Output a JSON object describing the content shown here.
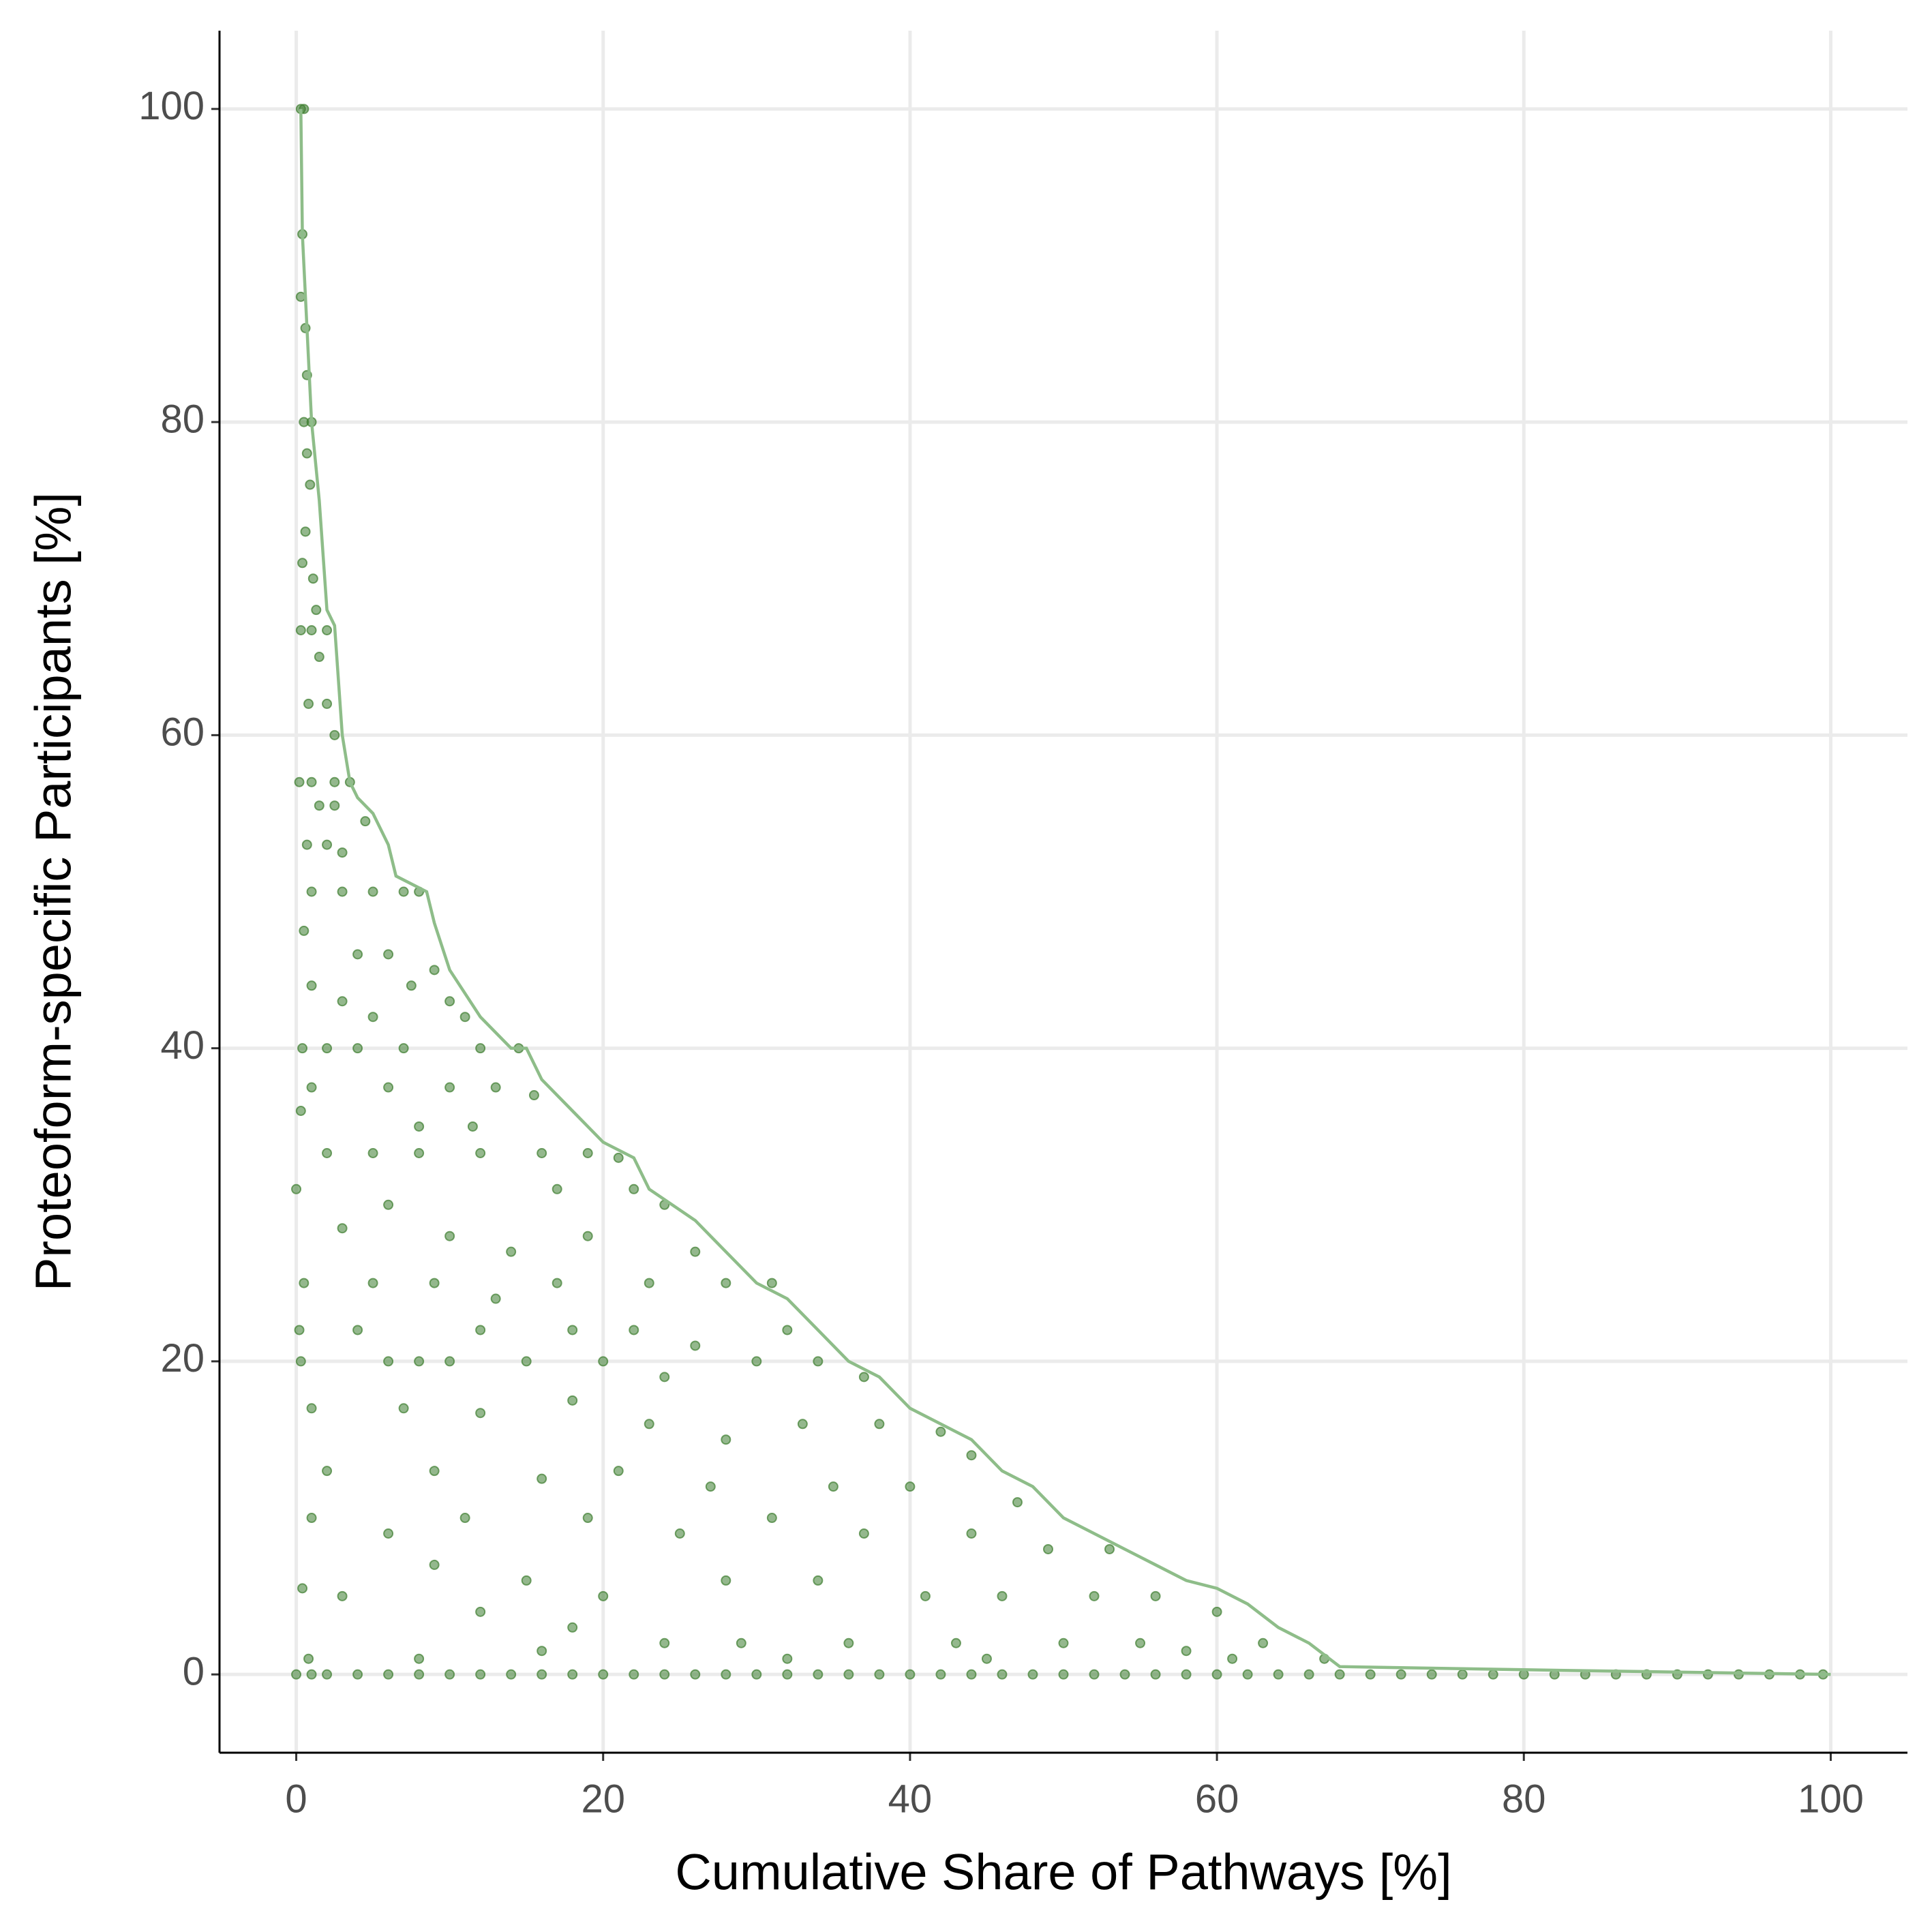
{
  "chart_data": {
    "type": "scatter",
    "x_label": "Cumulative Share of Pathways [%]",
    "y_label": "Proteoform-specific Participants [%]",
    "xlim": [
      -5,
      105
    ],
    "ylim": [
      -5,
      105
    ],
    "xticks": [
      0,
      20,
      40,
      60,
      80,
      100
    ],
    "yticks": [
      0,
      20,
      40,
      60,
      80,
      100
    ],
    "grid": true,
    "series": [
      {
        "type": "scatter",
        "color": "#3d7d2f",
        "x": [
          0.3,
          0.5,
          0.4,
          0.3,
          0.6,
          0.7,
          0.5,
          1,
          0.7,
          0.9,
          0.6,
          1.1,
          0.4,
          1.3,
          0.3,
          1,
          2,
          1.5,
          0.8,
          2,
          2.5,
          0.2,
          1,
          2.5,
          3.5,
          1.5,
          2.5,
          4.5,
          0.7,
          2,
          3,
          1,
          3,
          5,
          7,
          8,
          0.5,
          4,
          6,
          7.5,
          9,
          1,
          3,
          10,
          5,
          11,
          0.4,
          2,
          4,
          7,
          12,
          14.5,
          1,
          6,
          10,
          13,
          15.5,
          0.3,
          8,
          11.5,
          2,
          5,
          8,
          12,
          16,
          19,
          21,
          0,
          6,
          17,
          22,
          24,
          3,
          10,
          14,
          19,
          26,
          0.5,
          5,
          9,
          13,
          17,
          23,
          28,
          31,
          0.2,
          4,
          12,
          18,
          22,
          26,
          32,
          34,
          0.3,
          6,
          8,
          10,
          15,
          20,
          24,
          30,
          37,
          1,
          7,
          12,
          18,
          23,
          28,
          33,
          38,
          42,
          44,
          2,
          9,
          16,
          21,
          27,
          35,
          40,
          47,
          1,
          6,
          11,
          19,
          25,
          31,
          37,
          44,
          49,
          53,
          3,
          9,
          15,
          20,
          28,
          34,
          41,
          46,
          52,
          56,
          60,
          0.4,
          12,
          18,
          24,
          29,
          36,
          43,
          50,
          55,
          58,
          63,
          0.8,
          8,
          16,
          32,
          45,
          61,
          67,
          0,
          1,
          2,
          4,
          6,
          8,
          10,
          12,
          14,
          16,
          18,
          20,
          22,
          24,
          26,
          28,
          30,
          32,
          34,
          36,
          38,
          40,
          42,
          44,
          46,
          48,
          50,
          52,
          54,
          56,
          58,
          60,
          62,
          64,
          66,
          68,
          70,
          72,
          74,
          76,
          78,
          80,
          82,
          84,
          86,
          88,
          90,
          92,
          94,
          96,
          98,
          99.5
        ],
        "values": [
          100,
          100,
          92,
          88,
          86,
          83,
          80,
          80,
          78,
          76,
          73,
          70,
          71,
          68,
          66.7,
          66.7,
          66.7,
          65,
          62,
          62,
          60,
          57,
          57,
          57,
          57,
          55.5,
          55.5,
          54.5,
          53,
          53,
          52.5,
          50,
          50,
          50,
          50,
          50,
          47.5,
          46,
          46,
          44,
          45,
          44,
          43,
          43,
          42,
          42,
          40,
          40,
          40,
          40,
          40,
          40,
          37.5,
          37.5,
          37.5,
          37.5,
          37,
          36,
          35,
          35,
          33.3,
          33.3,
          33.3,
          33.3,
          33.3,
          33.3,
          33,
          31,
          30,
          31,
          31,
          30,
          28.5,
          28,
          27,
          28,
          27,
          25,
          25,
          25,
          24,
          25,
          25,
          25,
          25,
          22,
          22,
          22,
          22,
          22,
          21,
          22,
          20,
          20,
          20,
          20,
          20,
          20,
          20,
          19,
          20,
          19,
          17,
          17,
          16.7,
          17.5,
          16,
          15,
          16,
          16,
          15.5,
          14,
          13,
          13,
          12.5,
          13,
          12,
          12,
          12,
          11,
          10,
          9,
          10,
          10,
          9,
          10,
          9,
          9,
          8,
          8,
          5,
          7,
          6,
          5,
          6,
          6,
          5,
          5,
          5,
          5,
          4,
          5.5,
          4,
          3,
          2,
          2,
          2,
          2,
          2,
          2,
          1.5,
          2,
          1,
          1,
          1.5,
          1,
          1,
          1,
          1,
          0,
          0,
          0,
          0,
          0,
          0,
          0,
          0,
          0,
          0,
          0,
          0,
          0,
          0,
          0,
          0,
          0,
          0,
          0,
          0,
          0,
          0,
          0,
          0,
          0,
          0,
          0,
          0,
          0,
          0,
          0,
          0,
          0,
          0,
          0,
          0,
          0,
          0,
          0,
          0,
          0,
          0,
          0,
          0,
          0,
          0,
          0,
          0,
          0,
          0,
          0,
          0
        ]
      },
      {
        "type": "line",
        "color": "#8ebd89",
        "x": [
          0.3,
          0.4,
          1,
          1.5,
          2,
          2.5,
          3,
          3.5,
          4,
          5,
          6,
          6.5,
          8.5,
          9,
          10,
          12,
          14,
          15,
          16,
          18,
          20,
          22,
          23,
          26,
          28,
          30,
          32,
          34,
          36,
          38,
          40,
          42,
          44,
          46,
          48,
          50,
          52,
          54,
          56,
          58,
          60,
          62,
          64,
          66,
          68,
          80,
          100
        ],
        "values": [
          100,
          92,
          80,
          75,
          68,
          67,
          60,
          57,
          56,
          55,
          53,
          51,
          50,
          48,
          45,
          42,
          40,
          40,
          38,
          36,
          34,
          33,
          31,
          29,
          27,
          25,
          24,
          22,
          20,
          19,
          17,
          16,
          15,
          13,
          12,
          10,
          9,
          8,
          7,
          6,
          5.5,
          4.5,
          3,
          2,
          0.5,
          0.3,
          0
        ]
      }
    ]
  }
}
